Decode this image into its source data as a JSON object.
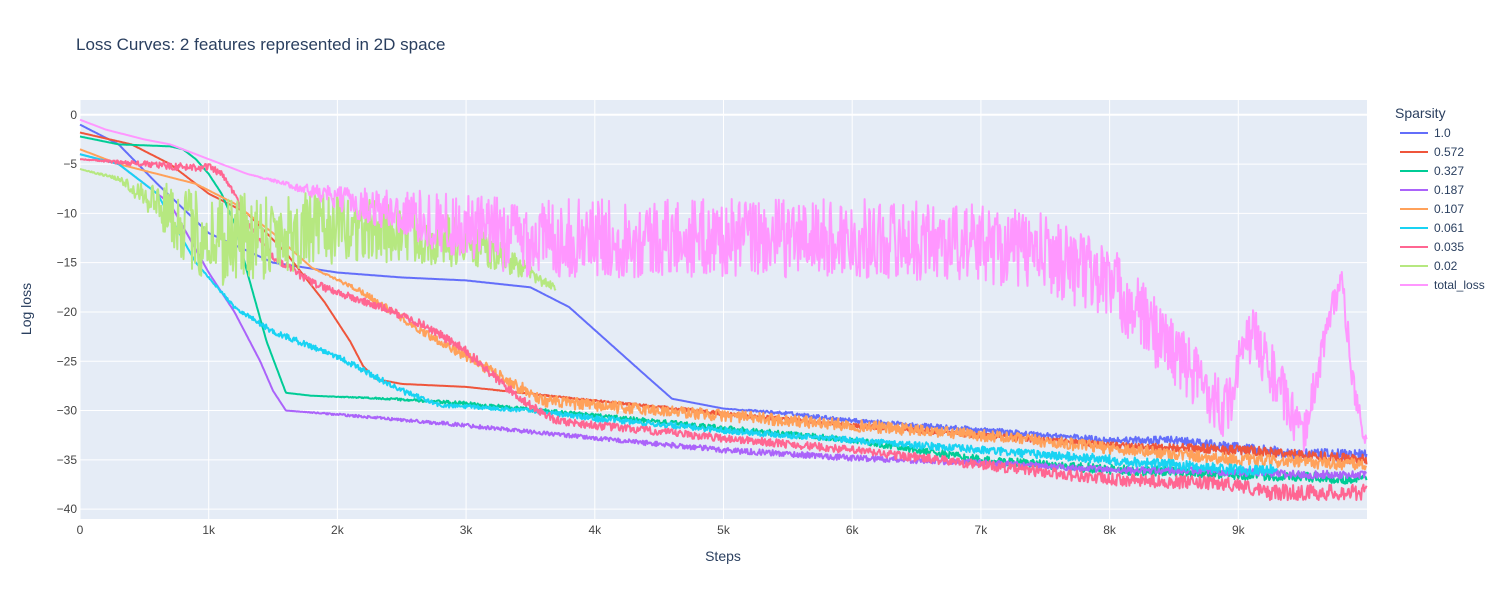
{
  "chart_data": {
    "type": "line",
    "title": "Loss Curves: 2 features represented in 2D space",
    "xlabel": "Steps",
    "ylabel": "Log loss",
    "xlim": [
      0,
      10000
    ],
    "ylim": [
      -41,
      1.5
    ],
    "x_ticks": [
      {
        "value": 0,
        "label": "0"
      },
      {
        "value": 1000,
        "label": "1k"
      },
      {
        "value": 2000,
        "label": "2k"
      },
      {
        "value": 3000,
        "label": "3k"
      },
      {
        "value": 4000,
        "label": "4k"
      },
      {
        "value": 5000,
        "label": "5k"
      },
      {
        "value": 6000,
        "label": "6k"
      },
      {
        "value": 7000,
        "label": "7k"
      },
      {
        "value": 8000,
        "label": "8k"
      },
      {
        "value": 9000,
        "label": "9k"
      }
    ],
    "y_ticks": [
      {
        "value": 0,
        "label": "0"
      },
      {
        "value": -5,
        "label": "−5"
      },
      {
        "value": -10,
        "label": "−10"
      },
      {
        "value": -15,
        "label": "−15"
      },
      {
        "value": -20,
        "label": "−20"
      },
      {
        "value": -25,
        "label": "−25"
      },
      {
        "value": -30,
        "label": "−30"
      },
      {
        "value": -35,
        "label": "−35"
      },
      {
        "value": -40,
        "label": "−40"
      }
    ],
    "grid": true,
    "legend_title": "Sparsity",
    "legend_position": "right",
    "series": [
      {
        "name": "1.0",
        "color": "#636efa",
        "x": [
          0,
          300,
          600,
          1000,
          1500,
          2000,
          2500,
          3000,
          3500,
          3800,
          4100,
          4400,
          4600,
          5000,
          5500,
          6000,
          7000,
          8000,
          8500,
          9000,
          9500,
          10000
        ],
        "y": [
          -1,
          -3,
          -7,
          -12,
          -15,
          -16,
          -16.5,
          -16.8,
          -17.5,
          -19.5,
          -23,
          -26.5,
          -28.8,
          -29.8,
          -30.3,
          -31,
          -32,
          -33,
          -33,
          -33.8,
          -34.5,
          -34.5
        ],
        "noise": [
          0,
          0,
          0,
          0,
          0,
          0,
          0,
          0,
          0,
          0,
          0,
          0,
          0,
          0,
          0.2,
          0.2,
          0.3,
          0.3,
          0.4,
          0.5,
          0.6,
          0.6
        ]
      },
      {
        "name": "0.572",
        "color": "#ef553b",
        "x": [
          0,
          400,
          700,
          1000,
          1300,
          1600,
          1900,
          2100,
          2200,
          2300,
          2500,
          3000,
          4000,
          5000,
          6000,
          7000,
          8000,
          9000,
          10000
        ],
        "y": [
          -1.8,
          -3,
          -5,
          -8,
          -10,
          -14,
          -19,
          -23,
          -25.5,
          -26.8,
          -27.3,
          -27.6,
          -29,
          -30.3,
          -31.5,
          -32.5,
          -33.5,
          -34,
          -35
        ],
        "noise": [
          0,
          0,
          0,
          0,
          0,
          0,
          0,
          0,
          0,
          0,
          0,
          0,
          0.1,
          0.2,
          0.2,
          0.3,
          0.3,
          0.5,
          0.5
        ]
      },
      {
        "name": "0.327",
        "color": "#00cc96",
        "x": [
          0,
          300,
          700,
          800,
          900,
          1000,
          1100,
          1200,
          1300,
          1450,
          1600,
          1800,
          2400,
          3000,
          4000,
          5000,
          6000,
          7000,
          8000,
          8500,
          9000,
          10000
        ],
        "y": [
          -2.2,
          -3,
          -3.2,
          -3.5,
          -4.5,
          -6,
          -8,
          -11,
          -16,
          -23,
          -28.2,
          -28.5,
          -28.8,
          -29.3,
          -30.5,
          -31.8,
          -33,
          -35,
          -36,
          -36.2,
          -36.5,
          -37
        ],
        "noise": [
          0,
          0,
          0,
          0,
          0,
          0,
          0,
          0,
          0,
          0,
          0,
          0,
          0.1,
          0.2,
          0.2,
          0.3,
          0.3,
          0.4,
          0.5,
          0.5,
          0.5,
          0.5
        ]
      },
      {
        "name": "0.187",
        "color": "#ab63fa",
        "x": [
          0,
          300,
          700,
          1000,
          1200,
          1400,
          1500,
          1600,
          2000,
          3000,
          4000,
          5000,
          6000,
          7000,
          8000,
          9000,
          9500,
          10000
        ],
        "y": [
          -4,
          -5,
          -9,
          -16,
          -20,
          -25,
          -28,
          -30,
          -30.4,
          -31.5,
          -32.8,
          -34,
          -34.8,
          -35.3,
          -36,
          -36.2,
          -36.5,
          -36.5
        ],
        "noise": [
          0,
          0,
          0,
          0,
          0,
          0,
          0,
          0,
          0.1,
          0.2,
          0.2,
          0.3,
          0.3,
          0.3,
          0.3,
          0.4,
          0.4,
          0.4
        ]
      },
      {
        "name": "0.107",
        "color": "#ffa15a",
        "x": [
          0,
          300,
          600,
          900,
          1200,
          1500,
          1800,
          2200,
          2600,
          3000,
          3400,
          3600,
          4000,
          5000,
          6000,
          7000,
          8000,
          9000,
          10000
        ],
        "y": [
          -3.5,
          -5,
          -6,
          -7,
          -9,
          -12,
          -15.5,
          -18,
          -21.5,
          -24.5,
          -27.5,
          -29,
          -29.5,
          -30.5,
          -31.5,
          -32.5,
          -33.8,
          -35,
          -35.5
        ],
        "noise": [
          0,
          0,
          0,
          0,
          0,
          0,
          0,
          0.3,
          0.4,
          0.5,
          0.6,
          0.6,
          0.6,
          0.6,
          0.6,
          0.6,
          0.6,
          0.6,
          0.6
        ]
      },
      {
        "name": "0.061",
        "color": "#19d3f3",
        "x": [
          0,
          300,
          600,
          900,
          1200,
          1500,
          2000,
          2500,
          2800,
          3000,
          3500,
          4000,
          5000,
          6000,
          7000,
          8000,
          9000,
          9300
        ],
        "y": [
          -4,
          -5,
          -8,
          -15,
          -19.5,
          -22,
          -24.5,
          -28,
          -29.5,
          -29.6,
          -30,
          -30.8,
          -32,
          -33,
          -34,
          -35,
          -36,
          -36
        ],
        "noise": [
          0,
          0,
          0,
          0,
          0.2,
          0.3,
          0.3,
          0.3,
          0.2,
          0.2,
          0.2,
          0.3,
          0.3,
          0.3,
          0.4,
          0.5,
          0.5,
          0.5
        ]
      },
      {
        "name": "0.035",
        "color": "#ff6692",
        "x": [
          0,
          500,
          800,
          1000,
          1100,
          1200,
          1300,
          1500,
          1800,
          2100,
          2400,
          2700,
          3000,
          3300,
          3500,
          3700,
          4000,
          5000,
          6000,
          7000,
          8000,
          9000,
          9200,
          10000
        ],
        "y": [
          -4.5,
          -5,
          -5.3,
          -5.3,
          -6,
          -8,
          -11,
          -14.5,
          -17,
          -18.5,
          -19.8,
          -21.5,
          -24,
          -27.5,
          -29.5,
          -31,
          -31.5,
          -32.8,
          -34,
          -35.5,
          -37,
          -37.5,
          -38.3,
          -38.3
        ],
        "noise": [
          0,
          0.3,
          0.4,
          0.4,
          0.3,
          0.3,
          0.3,
          0.4,
          0.4,
          0.4,
          0.4,
          0.4,
          0.5,
          0.5,
          0.4,
          0.4,
          0.4,
          0.4,
          0.4,
          0.5,
          0.6,
          0.7,
          0.8,
          0.8
        ]
      },
      {
        "name": "0.02",
        "color": "#b6e880",
        "x": [
          0,
          300,
          500,
          700,
          900,
          1100,
          1500,
          2000,
          2500,
          3000,
          3300,
          3600,
          3700
        ],
        "y": [
          -5.5,
          -6.5,
          -8,
          -10,
          -12,
          -12.5,
          -12,
          -11.5,
          -12,
          -13,
          -14.5,
          -17,
          -17.5
        ],
        "noise": [
          0,
          0.2,
          1.5,
          3,
          4.5,
          5,
          4.5,
          3.5,
          3,
          2.5,
          1.5,
          0.5,
          0.3
        ]
      },
      {
        "name": "total_loss",
        "color": "#ff97ff",
        "x": [
          0,
          200,
          500,
          700,
          900,
          1100,
          1300,
          1600,
          2000,
          2500,
          3000,
          3500,
          4000,
          5000,
          6000,
          7000,
          7500,
          8000,
          8500,
          8900,
          9000,
          9100,
          9300,
          9500,
          9700,
          9800,
          9900,
          10000
        ],
        "y": [
          -0.5,
          -1.5,
          -2.5,
          -3,
          -4,
          -5,
          -6,
          -7,
          -8.5,
          -10,
          -11.5,
          -12.5,
          -12.5,
          -12.5,
          -12.5,
          -13,
          -14,
          -17,
          -24,
          -30,
          -26,
          -22,
          -27,
          -33,
          -21,
          -16.5,
          -28,
          -34
        ],
        "noise": [
          0,
          0,
          0,
          0,
          0,
          0,
          0,
          0.2,
          1.2,
          2.5,
          3.5,
          4,
          4,
          4,
          4,
          4,
          4,
          4,
          3.5,
          3,
          3,
          3,
          3,
          2,
          2,
          1.5,
          1.5,
          1
        ]
      }
    ]
  }
}
